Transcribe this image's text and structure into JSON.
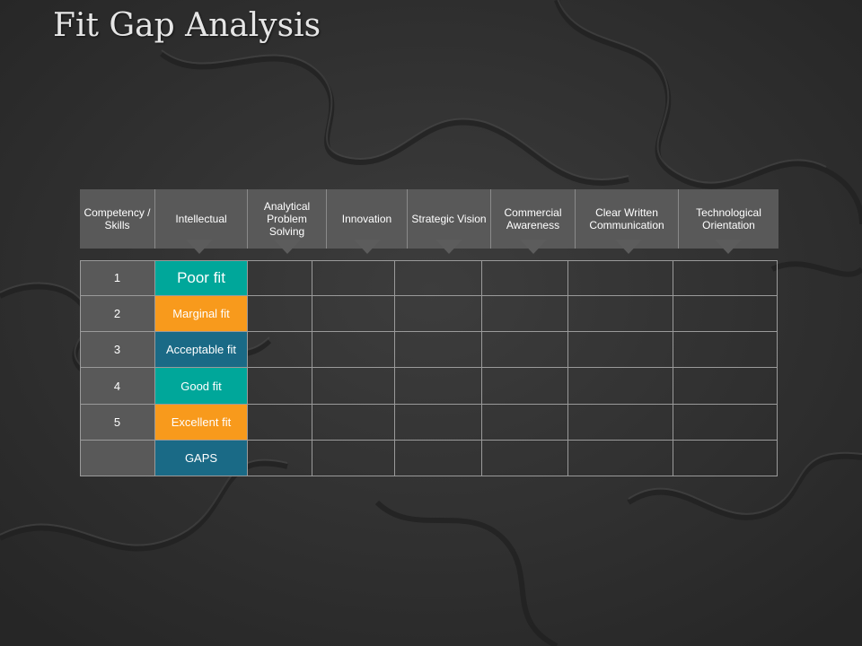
{
  "title": "Fit Gap Analysis",
  "headers": [
    "Competency / Skills",
    "Intellectual",
    "Analytical Problem Solving",
    "Innovation",
    "Strategic Vision",
    "Commercial Awareness",
    "Clear Written Communication",
    "Technological Orientation"
  ],
  "rows": [
    {
      "num": "1",
      "label": "Poor fit",
      "color": "#00a79a"
    },
    {
      "num": "2",
      "label": "Marginal fit",
      "color": "#f89a1c"
    },
    {
      "num": "3",
      "label": "Acceptable fit",
      "color": "#1a6a86"
    },
    {
      "num": "4",
      "label": "Good fit",
      "color": "#00a79a"
    },
    {
      "num": "5",
      "label": "Excellent fit",
      "color": "#f89a1c"
    },
    {
      "num": "",
      "label": "GAPS",
      "color": "#1a6a86"
    }
  ],
  "colors": {
    "header_bg": "#595959",
    "number_bg": "#595959",
    "background": "#353535"
  }
}
